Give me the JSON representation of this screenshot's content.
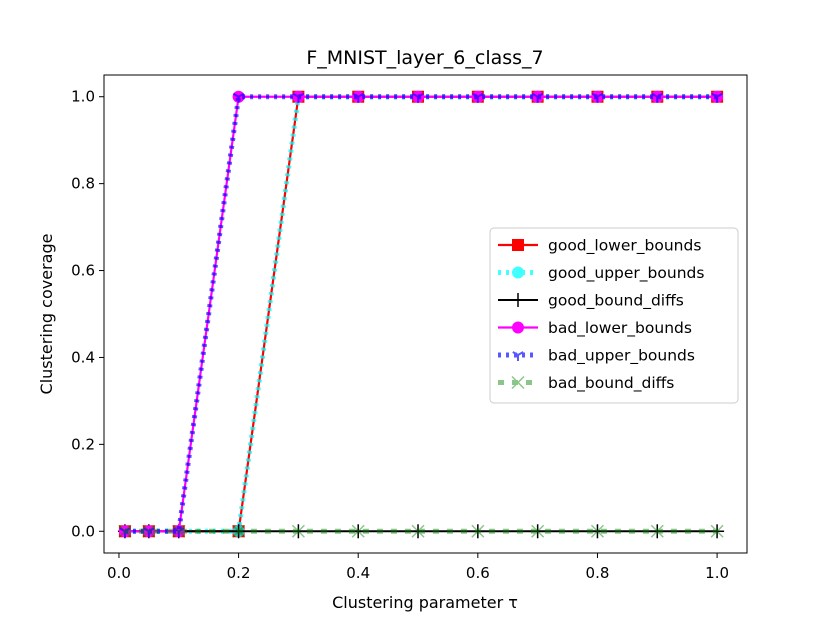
{
  "chart_data": {
    "type": "line",
    "title": "F_MNIST_layer_6_class_7",
    "xlabel": "Clustering parameter τ",
    "ylabel": "Clustering coverage",
    "xlim": [
      -0.025,
      1.05
    ],
    "ylim": [
      -0.05,
      1.05
    ],
    "xticks": [
      0.0,
      0.2,
      0.4,
      0.6,
      0.8,
      1.0
    ],
    "xtick_labels": [
      "0.0",
      "0.2",
      "0.4",
      "0.6",
      "0.8",
      "1.0"
    ],
    "yticks": [
      0.0,
      0.2,
      0.4,
      0.6,
      0.8,
      1.0
    ],
    "ytick_labels": [
      "0.0",
      "0.2",
      "0.4",
      "0.6",
      "0.8",
      "1.0"
    ],
    "grid": false,
    "legend_position": "center-right",
    "x": [
      0.01,
      0.05,
      0.1,
      0.2,
      0.3,
      0.4,
      0.5,
      0.6,
      0.7,
      0.8,
      0.9,
      1.0
    ],
    "series": [
      {
        "name": "good_lower_bounds",
        "values": [
          0,
          0,
          0,
          0,
          1,
          1,
          1,
          1,
          1,
          1,
          1,
          1
        ],
        "color": "#ff0000",
        "marker": "square",
        "linestyle": "solid"
      },
      {
        "name": "good_upper_bounds",
        "values": [
          0,
          0,
          0,
          0,
          1,
          1,
          1,
          1,
          1,
          1,
          1,
          1
        ],
        "color": "#00ffff",
        "marker": "circle",
        "linestyle": "dotted"
      },
      {
        "name": "good_bound_diffs",
        "values": [
          0,
          0,
          0,
          0,
          0,
          0,
          0,
          0,
          0,
          0,
          0,
          0
        ],
        "color": "#000000",
        "marker": "plus",
        "linestyle": "solid"
      },
      {
        "name": "bad_lower_bounds",
        "values": [
          0,
          0,
          0,
          1,
          1,
          1,
          1,
          1,
          1,
          1,
          1,
          1
        ],
        "color": "#ff00ff",
        "marker": "circle",
        "linestyle": "solid"
      },
      {
        "name": "bad_upper_bounds",
        "values": [
          0,
          0,
          0,
          1,
          1,
          1,
          1,
          1,
          1,
          1,
          1,
          1
        ],
        "color": "#0000ff",
        "marker": "tri_down",
        "linestyle": "dotted"
      },
      {
        "name": "bad_bound_diffs",
        "values": [
          0,
          0,
          0,
          0,
          0,
          0,
          0,
          0,
          0,
          0,
          0,
          0
        ],
        "color": "#008000",
        "marker": "x",
        "linestyle": "dotted"
      }
    ]
  }
}
